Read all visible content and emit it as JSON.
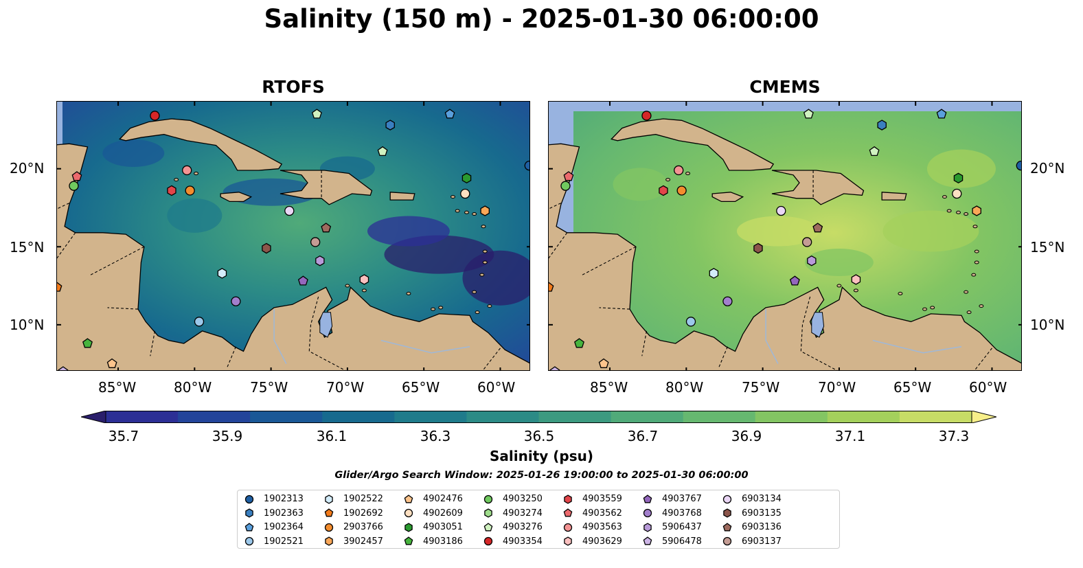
{
  "title": "Salinity (150 m) - 2025-01-30 06:00:00",
  "panels": [
    {
      "title": "RTOFS"
    },
    {
      "title": "CMEMS"
    }
  ],
  "axes": {
    "lon_ticks": [
      "85°W",
      "80°W",
      "75°W",
      "70°W",
      "65°W",
      "60°W"
    ],
    "lat_ticks": [
      "20°N",
      "15°N",
      "10°N"
    ],
    "lon_range": [
      -89,
      -58
    ],
    "lat_range": [
      7,
      24.3
    ]
  },
  "colorbar": {
    "label": "Salinity (psu)",
    "ticks": [
      "35.7",
      "35.9",
      "36.1",
      "36.3",
      "36.5",
      "36.7",
      "36.9",
      "37.1",
      "37.3"
    ],
    "range": [
      35.6,
      37.4
    ],
    "colors": [
      "#2a1e6b",
      "#2c2f95",
      "#23449a",
      "#1a5896",
      "#176a8e",
      "#1f7b8b",
      "#2c8b86",
      "#3c9a80",
      "#50aa79",
      "#66b870",
      "#83c563",
      "#a4d05c",
      "#c7dc66",
      "#f7ef8a"
    ]
  },
  "search_window": "Glider/Argo Search Window: 2025-01-26 19:00:00 to 2025-01-30 06:00:00",
  "legend": [
    {
      "id": "1902313",
      "marker": "circle",
      "color": "#1f5fa3"
    },
    {
      "id": "1902363",
      "marker": "hexagon",
      "color": "#3a7fc0"
    },
    {
      "id": "1902364",
      "marker": "pentagon",
      "color": "#5a9fdc"
    },
    {
      "id": "1902521",
      "marker": "circle",
      "color": "#9cc8ea"
    },
    {
      "id": "1902522",
      "marker": "hexagon",
      "color": "#d3ecfa"
    },
    {
      "id": "1902692",
      "marker": "pentagon",
      "color": "#f27a1a"
    },
    {
      "id": "2903766",
      "marker": "circle",
      "color": "#f38d2e"
    },
    {
      "id": "3902457",
      "marker": "hexagon",
      "color": "#f9a758"
    },
    {
      "id": "4902476",
      "marker": "pentagon",
      "color": "#fcc48c"
    },
    {
      "id": "4902609",
      "marker": "circle",
      "color": "#fde0c2"
    },
    {
      "id": "4903051",
      "marker": "hexagon",
      "color": "#2a9a2f"
    },
    {
      "id": "4903186",
      "marker": "pentagon",
      "color": "#47b43e"
    },
    {
      "id": "4903250",
      "marker": "circle",
      "color": "#70c95f"
    },
    {
      "id": "4903274",
      "marker": "hexagon",
      "color": "#9fdd8c"
    },
    {
      "id": "4903276",
      "marker": "pentagon",
      "color": "#d0f2c0"
    },
    {
      "id": "4903354",
      "marker": "circle",
      "color": "#d62728"
    },
    {
      "id": "4903559",
      "marker": "hexagon",
      "color": "#e2454a"
    },
    {
      "id": "4903562",
      "marker": "pentagon",
      "color": "#ec6a6d"
    },
    {
      "id": "4903563",
      "marker": "circle",
      "color": "#f39393"
    },
    {
      "id": "4903629",
      "marker": "hexagon",
      "color": "#fbc0bf"
    },
    {
      "id": "4903767",
      "marker": "pentagon",
      "color": "#9467bd"
    },
    {
      "id": "4903768",
      "marker": "circle",
      "color": "#a27fcc"
    },
    {
      "id": "5906437",
      "marker": "hexagon",
      "color": "#b89ad9"
    },
    {
      "id": "5906478",
      "marker": "pentagon",
      "color": "#cdb5e6"
    },
    {
      "id": "6903134",
      "marker": "circle",
      "color": "#ead6f5"
    },
    {
      "id": "6903135",
      "marker": "hexagon",
      "color": "#8c564b"
    },
    {
      "id": "6903136",
      "marker": "pentagon",
      "color": "#9e6b5f"
    },
    {
      "id": "6903137",
      "marker": "circle",
      "color": "#c49c94"
    }
  ],
  "floats": [
    {
      "id": "4903354",
      "lon": -82.6,
      "lat": 23.4
    },
    {
      "id": "4903276",
      "lon": -72.0,
      "lat": 23.5
    },
    {
      "id": "1902363",
      "lon": -67.2,
      "lat": 22.8
    },
    {
      "id": "1902364",
      "lon": -63.3,
      "lat": 23.5
    },
    {
      "id": "4903276",
      "lon": -67.7,
      "lat": 21.1
    },
    {
      "id": "1902313",
      "lon": -58.1,
      "lat": 20.2
    },
    {
      "id": "4903562",
      "lon": -87.7,
      "lat": 19.5
    },
    {
      "id": "4903250",
      "lon": -87.9,
      "lat": 18.9
    },
    {
      "id": "4903563",
      "lon": -80.5,
      "lat": 19.9
    },
    {
      "id": "4903559",
      "lon": -81.5,
      "lat": 18.6
    },
    {
      "id": "2903766",
      "lon": -80.3,
      "lat": 18.6
    },
    {
      "id": "4903051",
      "lon": -62.2,
      "lat": 19.4
    },
    {
      "id": "4902609",
      "lon": -62.3,
      "lat": 18.4
    },
    {
      "id": "3902457",
      "lon": -61.0,
      "lat": 17.3
    },
    {
      "id": "6903134",
      "lon": -73.8,
      "lat": 17.3
    },
    {
      "id": "6903136",
      "lon": -71.4,
      "lat": 16.2
    },
    {
      "id": "6903135",
      "lon": -75.3,
      "lat": 14.9
    },
    {
      "id": "6903137",
      "lon": -72.1,
      "lat": 15.3
    },
    {
      "id": "5906437",
      "lon": -71.8,
      "lat": 14.1
    },
    {
      "id": "1902522",
      "lon": -78.2,
      "lat": 13.3
    },
    {
      "id": "4903767",
      "lon": -72.9,
      "lat": 12.8
    },
    {
      "id": "4903629",
      "lon": -68.9,
      "lat": 12.9
    },
    {
      "id": "4903768",
      "lon": -77.3,
      "lat": 11.5
    },
    {
      "id": "1902521",
      "lon": -79.7,
      "lat": 10.2
    },
    {
      "id": "1902692",
      "lon": -89.0,
      "lat": 12.4
    },
    {
      "id": "4903186",
      "lon": -87.0,
      "lat": 8.8
    },
    {
      "id": "4902476",
      "lon": -85.4,
      "lat": 7.5
    },
    {
      "id": "5906478",
      "lon": -88.6,
      "lat": 7.0
    }
  ]
}
